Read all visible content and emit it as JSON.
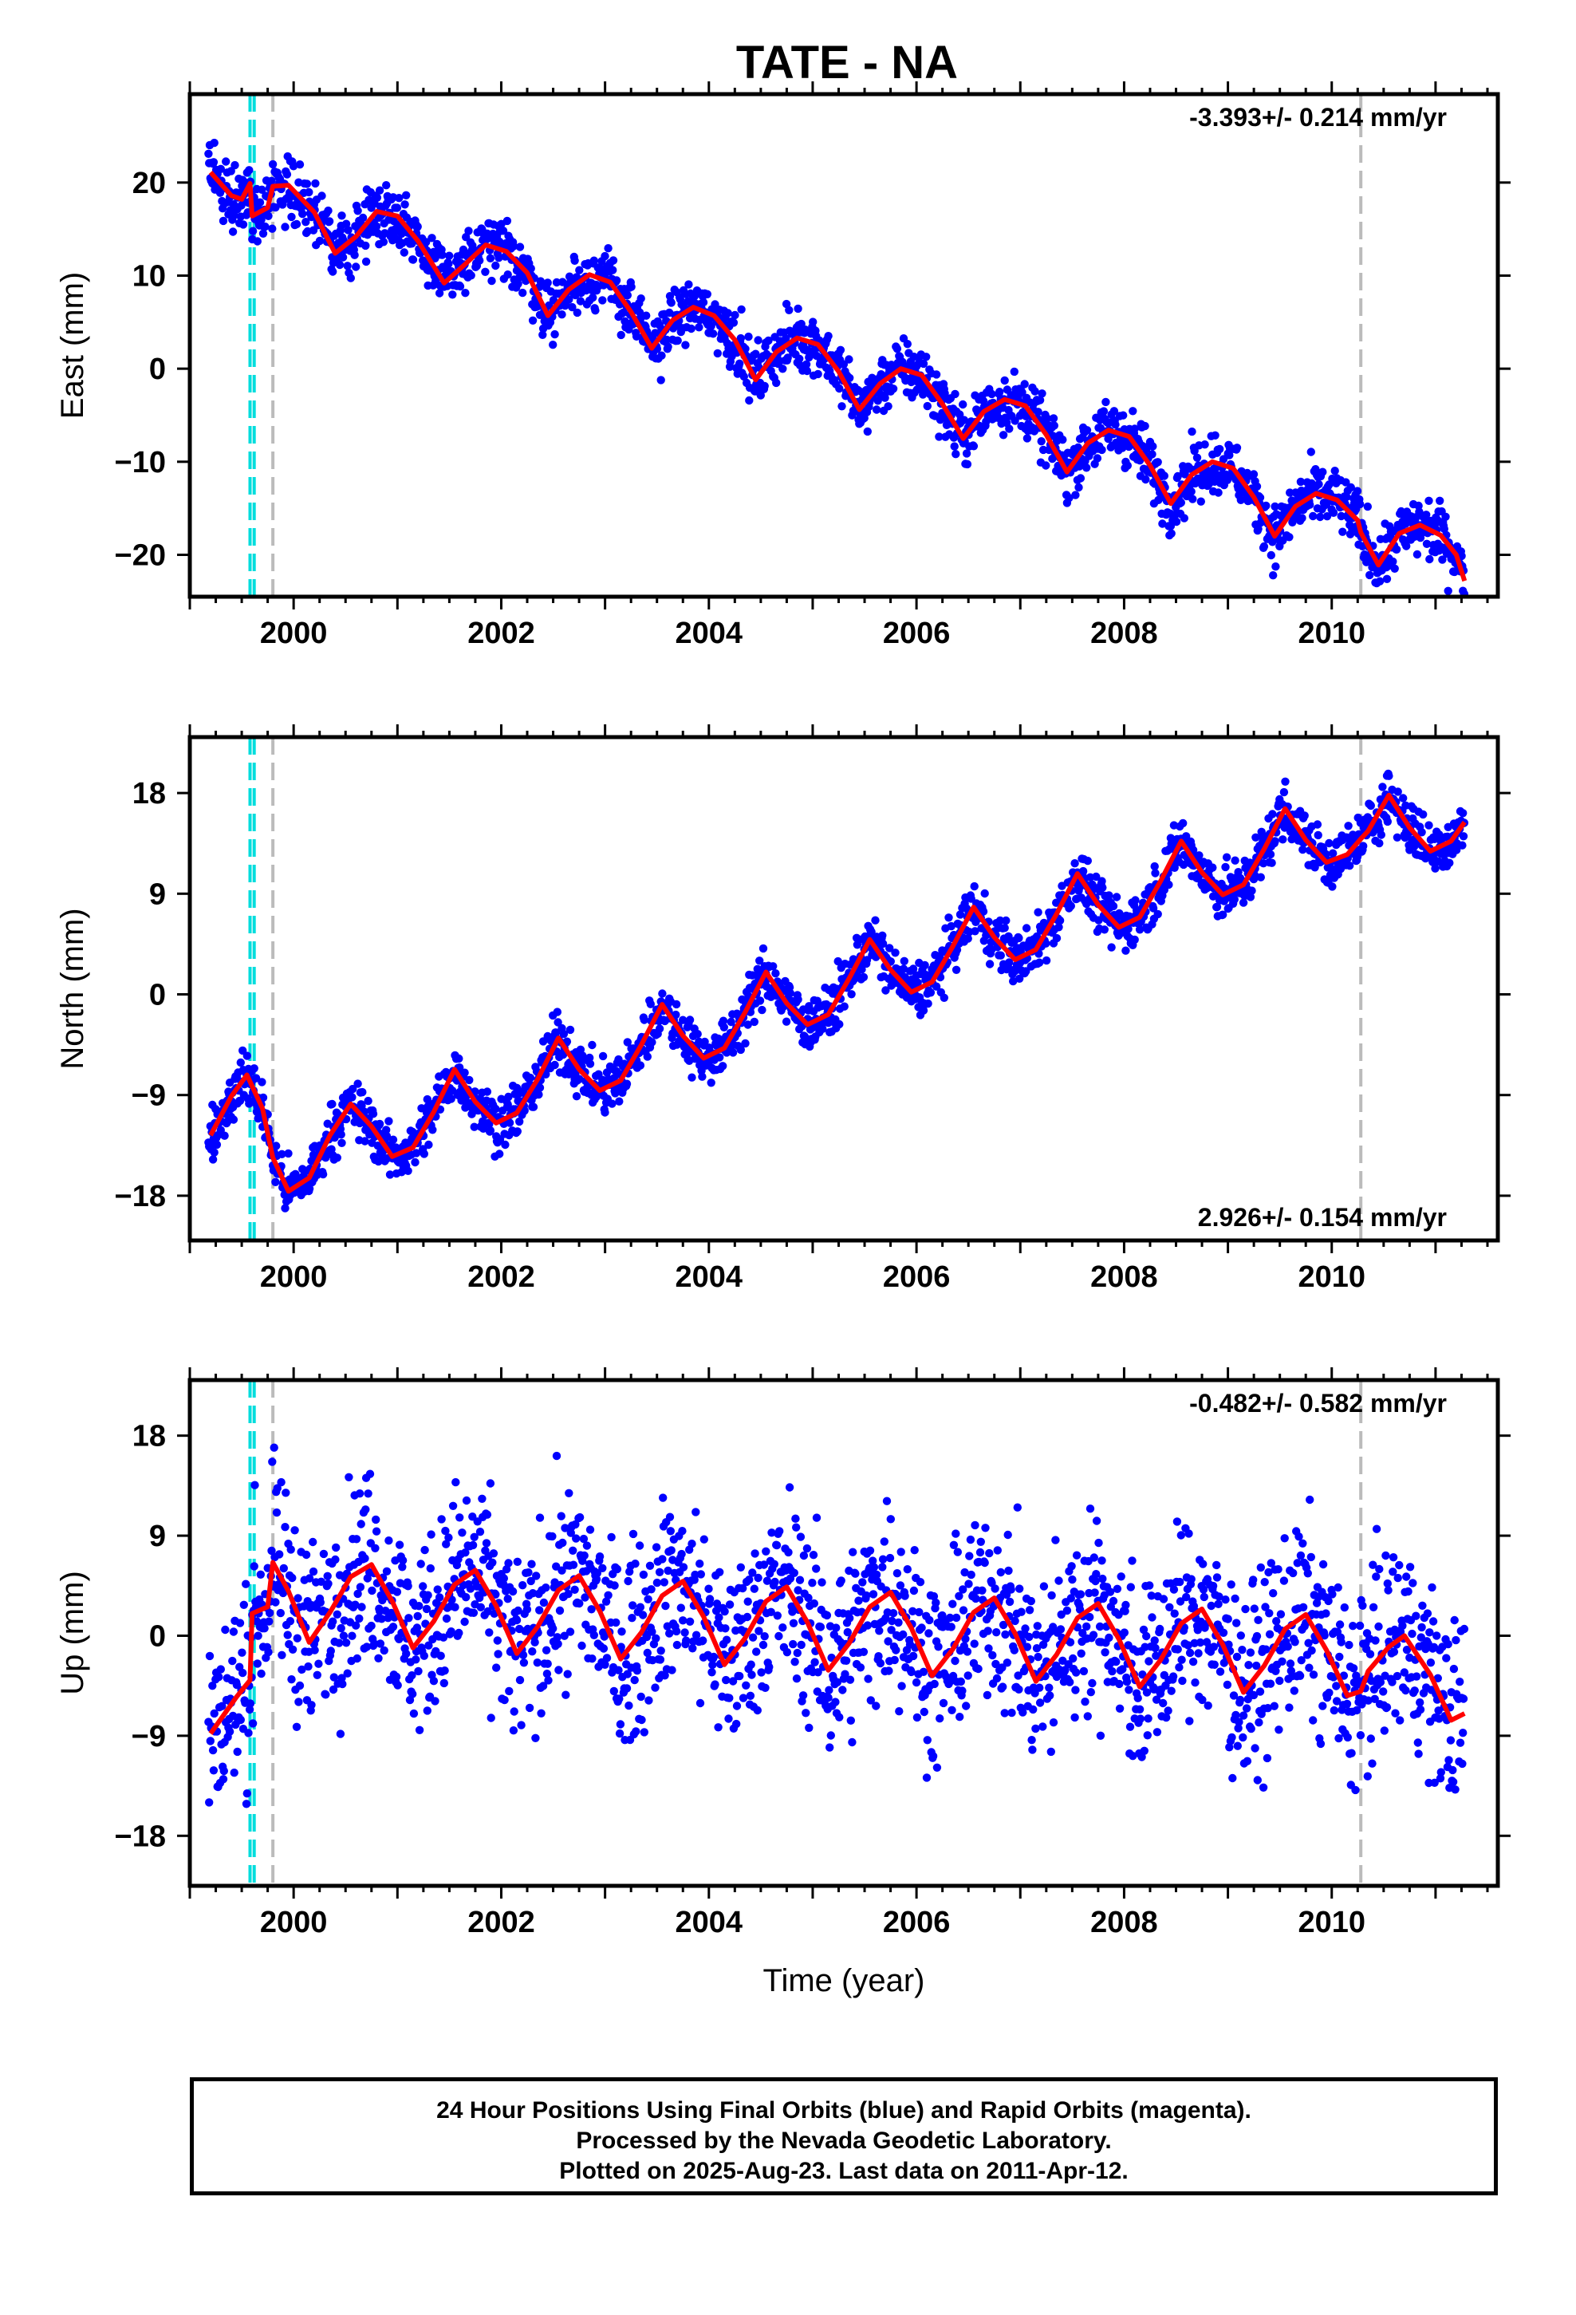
{
  "chart_data": {
    "type": "scatter",
    "title": "TATE - NA",
    "xlabel": "Time (year)",
    "xlim": [
      1999.0,
      2011.6
    ],
    "xticks": [
      "2000",
      "2002",
      "2004",
      "2006",
      "2008",
      "2010"
    ],
    "xtick_values": [
      2000,
      2002,
      2004,
      2006,
      2008,
      2010
    ],
    "legend": [
      "24 Hour Positions Using Final Orbits (blue) and Rapid Orbits (magenta).",
      "Processed by the Nevada Geodetic Laboratory.",
      "Plotted on 2025-Aug-23. Last data on 2011-Apr-12."
    ],
    "colors": {
      "points": "#0000ff",
      "model": "#ff0000",
      "equipment": "#00dddd",
      "event": "#bbbbbb"
    },
    "vertical_lines": {
      "cyan_dashed": [
        1999.58,
        1999.62
      ],
      "gray_dashed": [
        1999.8,
        2010.28
      ]
    },
    "panels": [
      {
        "ylabel": "East (mm)",
        "ylim": [
          -24.5,
          29.5
        ],
        "yticks": [
          "20",
          "10",
          "0",
          "−10",
          "−20"
        ],
        "ytick_values": [
          20,
          10,
          0,
          -10,
          -20
        ],
        "rate_label": "-3.393+/- 0.214 mm/yr",
        "rate_pos": "top-right",
        "rate": -3.393,
        "rate_sigma": 0.214,
        "model_series": [
          {
            "x": 1999.2,
            "y": 21.1
          },
          {
            "x": 1999.4,
            "y": 18.6
          },
          {
            "x": 1999.5,
            "y": 18.2
          },
          {
            "x": 1999.58,
            "y": 19.9
          },
          {
            "x": 1999.6,
            "y": 16.4
          },
          {
            "x": 1999.75,
            "y": 17.3
          },
          {
            "x": 1999.8,
            "y": 19.6
          },
          {
            "x": 1999.95,
            "y": 19.7
          },
          {
            "x": 2000.2,
            "y": 16.8
          },
          {
            "x": 2000.4,
            "y": 12.4
          },
          {
            "x": 2000.6,
            "y": 14.2
          },
          {
            "x": 2000.8,
            "y": 16.9
          },
          {
            "x": 2001.0,
            "y": 16.4
          },
          {
            "x": 2001.2,
            "y": 13.7
          },
          {
            "x": 2001.45,
            "y": 9.2
          },
          {
            "x": 2001.65,
            "y": 11.2
          },
          {
            "x": 2001.85,
            "y": 13.3
          },
          {
            "x": 2002.05,
            "y": 12.6
          },
          {
            "x": 2002.25,
            "y": 10.3
          },
          {
            "x": 2002.45,
            "y": 5.7
          },
          {
            "x": 2002.65,
            "y": 8.5
          },
          {
            "x": 2002.85,
            "y": 10.1
          },
          {
            "x": 2003.05,
            "y": 9.3
          },
          {
            "x": 2003.25,
            "y": 6.1
          },
          {
            "x": 2003.45,
            "y": 2.2
          },
          {
            "x": 2003.65,
            "y": 5.2
          },
          {
            "x": 2003.85,
            "y": 6.6
          },
          {
            "x": 2004.05,
            "y": 5.7
          },
          {
            "x": 2004.25,
            "y": 3.1
          },
          {
            "x": 2004.45,
            "y": -1.2
          },
          {
            "x": 2004.65,
            "y": 1.8
          },
          {
            "x": 2004.85,
            "y": 3.3
          },
          {
            "x": 2005.05,
            "y": 2.6
          },
          {
            "x": 2005.25,
            "y": -0.3
          },
          {
            "x": 2005.45,
            "y": -4.4
          },
          {
            "x": 2005.65,
            "y": -1.6
          },
          {
            "x": 2005.85,
            "y": 0.0
          },
          {
            "x": 2006.05,
            "y": -0.7
          },
          {
            "x": 2006.25,
            "y": -3.8
          },
          {
            "x": 2006.45,
            "y": -7.5
          },
          {
            "x": 2006.65,
            "y": -4.6
          },
          {
            "x": 2006.85,
            "y": -3.3
          },
          {
            "x": 2007.05,
            "y": -4.0
          },
          {
            "x": 2007.25,
            "y": -7.1
          },
          {
            "x": 2007.45,
            "y": -11.1
          },
          {
            "x": 2007.65,
            "y": -8.0
          },
          {
            "x": 2007.85,
            "y": -6.6
          },
          {
            "x": 2008.05,
            "y": -7.3
          },
          {
            "x": 2008.25,
            "y": -10.4
          },
          {
            "x": 2008.45,
            "y": -14.5
          },
          {
            "x": 2008.65,
            "y": -11.4
          },
          {
            "x": 2008.85,
            "y": -10.0
          },
          {
            "x": 2009.05,
            "y": -10.7
          },
          {
            "x": 2009.25,
            "y": -13.8
          },
          {
            "x": 2009.45,
            "y": -18.0
          },
          {
            "x": 2009.65,
            "y": -14.8
          },
          {
            "x": 2009.85,
            "y": -13.4
          },
          {
            "x": 2010.05,
            "y": -14.1
          },
          {
            "x": 2010.25,
            "y": -16.3
          },
          {
            "x": 2010.28,
            "y": -17.6
          },
          {
            "x": 2010.45,
            "y": -21.1
          },
          {
            "x": 2010.65,
            "y": -17.7
          },
          {
            "x": 2010.85,
            "y": -16.8
          },
          {
            "x": 2011.05,
            "y": -17.9
          },
          {
            "x": 2011.2,
            "y": -20.0
          },
          {
            "x": 2011.28,
            "y": -22.8
          }
        ]
      },
      {
        "ylabel": "North (mm)",
        "ylim": [
          -22.0,
          23.0
        ],
        "yticks": [
          "18",
          "9",
          "0",
          "−9",
          "−18"
        ],
        "ytick_values": [
          18,
          9,
          0,
          -9,
          -18
        ],
        "rate_label": "2.926+/- 0.154 mm/yr",
        "rate_pos": "bottom-right",
        "rate": 2.926,
        "rate_sigma": 0.154,
        "model_series": [
          {
            "x": 1999.2,
            "y": -12.6
          },
          {
            "x": 1999.4,
            "y": -9.1
          },
          {
            "x": 1999.55,
            "y": -7.2
          },
          {
            "x": 1999.7,
            "y": -10.2
          },
          {
            "x": 1999.8,
            "y": -14.6
          },
          {
            "x": 1999.95,
            "y": -17.6
          },
          {
            "x": 2000.15,
            "y": -16.4
          },
          {
            "x": 2000.35,
            "y": -12.6
          },
          {
            "x": 2000.55,
            "y": -9.8
          },
          {
            "x": 2000.75,
            "y": -11.8
          },
          {
            "x": 2000.95,
            "y": -14.5
          },
          {
            "x": 2001.15,
            "y": -13.7
          },
          {
            "x": 2001.35,
            "y": -10.5
          },
          {
            "x": 2001.55,
            "y": -6.7
          },
          {
            "x": 2001.75,
            "y": -9.6
          },
          {
            "x": 2001.95,
            "y": -11.5
          },
          {
            "x": 2002.15,
            "y": -10.6
          },
          {
            "x": 2002.35,
            "y": -7.6
          },
          {
            "x": 2002.55,
            "y": -3.9
          },
          {
            "x": 2002.75,
            "y": -6.7
          },
          {
            "x": 2002.95,
            "y": -8.6
          },
          {
            "x": 2003.15,
            "y": -7.7
          },
          {
            "x": 2003.35,
            "y": -4.5
          },
          {
            "x": 2003.55,
            "y": -0.9
          },
          {
            "x": 2003.75,
            "y": -3.7
          },
          {
            "x": 2003.95,
            "y": -5.7
          },
          {
            "x": 2004.15,
            "y": -4.8
          },
          {
            "x": 2004.35,
            "y": -1.6
          },
          {
            "x": 2004.55,
            "y": 2.0
          },
          {
            "x": 2004.75,
            "y": -0.8
          },
          {
            "x": 2004.95,
            "y": -2.7
          },
          {
            "x": 2005.15,
            "y": -1.8
          },
          {
            "x": 2005.35,
            "y": 1.4
          },
          {
            "x": 2005.55,
            "y": 4.9
          },
          {
            "x": 2005.75,
            "y": 2.2
          },
          {
            "x": 2005.95,
            "y": 0.2
          },
          {
            "x": 2006.15,
            "y": 1.1
          },
          {
            "x": 2006.35,
            "y": 4.3
          },
          {
            "x": 2006.55,
            "y": 7.8
          },
          {
            "x": 2006.75,
            "y": 5.1
          },
          {
            "x": 2006.95,
            "y": 3.1
          },
          {
            "x": 2007.15,
            "y": 4.0
          },
          {
            "x": 2007.35,
            "y": 7.2
          },
          {
            "x": 2007.55,
            "y": 10.8
          },
          {
            "x": 2007.75,
            "y": 8.0
          },
          {
            "x": 2007.95,
            "y": 6.0
          },
          {
            "x": 2008.15,
            "y": 6.9
          },
          {
            "x": 2008.35,
            "y": 10.1
          },
          {
            "x": 2008.55,
            "y": 13.7
          },
          {
            "x": 2008.75,
            "y": 10.9
          },
          {
            "x": 2008.95,
            "y": 8.9
          },
          {
            "x": 2009.15,
            "y": 9.8
          },
          {
            "x": 2009.35,
            "y": 13.0
          },
          {
            "x": 2009.55,
            "y": 16.6
          },
          {
            "x": 2009.75,
            "y": 13.8
          },
          {
            "x": 2009.95,
            "y": 11.8
          },
          {
            "x": 2010.15,
            "y": 12.5
          },
          {
            "x": 2010.28,
            "y": 13.9
          },
          {
            "x": 2010.35,
            "y": 14.6
          },
          {
            "x": 2010.55,
            "y": 17.8
          },
          {
            "x": 2010.75,
            "y": 14.9
          },
          {
            "x": 2010.95,
            "y": 12.8
          },
          {
            "x": 2011.15,
            "y": 13.7
          },
          {
            "x": 2011.28,
            "y": 15.4
          }
        ]
      },
      {
        "ylabel": "Up (mm)",
        "ylim": [
          -22.5,
          23.0
        ],
        "yticks": [
          "18",
          "9",
          "0",
          "−9",
          "−18"
        ],
        "ytick_values": [
          18,
          9,
          0,
          -9,
          -18
        ],
        "rate_label": "-0.482+/- 0.582 mm/yr",
        "rate_pos": "top-right",
        "rate": -0.482,
        "rate_sigma": 0.582,
        "model_series": [
          {
            "x": 1999.2,
            "y": -8.8
          },
          {
            "x": 1999.45,
            "y": -5.5
          },
          {
            "x": 1999.58,
            "y": -4.0
          },
          {
            "x": 1999.6,
            "y": 2.0
          },
          {
            "x": 1999.75,
            "y": 2.6
          },
          {
            "x": 1999.8,
            "y": 6.6
          },
          {
            "x": 1999.95,
            "y": 4.0
          },
          {
            "x": 2000.15,
            "y": -0.6
          },
          {
            "x": 2000.35,
            "y": 2.1
          },
          {
            "x": 2000.55,
            "y": 5.3
          },
          {
            "x": 2000.75,
            "y": 6.4
          },
          {
            "x": 2000.95,
            "y": 3.1
          },
          {
            "x": 2001.15,
            "y": -1.1
          },
          {
            "x": 2001.35,
            "y": 1.3
          },
          {
            "x": 2001.55,
            "y": 4.6
          },
          {
            "x": 2001.75,
            "y": 5.9
          },
          {
            "x": 2001.95,
            "y": 2.7
          },
          {
            "x": 2002.15,
            "y": -1.6
          },
          {
            "x": 2002.35,
            "y": 0.8
          },
          {
            "x": 2002.55,
            "y": 4.1
          },
          {
            "x": 2002.75,
            "y": 5.4
          },
          {
            "x": 2002.95,
            "y": 2.2
          },
          {
            "x": 2003.15,
            "y": -2.1
          },
          {
            "x": 2003.35,
            "y": 0.3
          },
          {
            "x": 2003.55,
            "y": 3.6
          },
          {
            "x": 2003.75,
            "y": 4.9
          },
          {
            "x": 2003.95,
            "y": 1.7
          },
          {
            "x": 2004.15,
            "y": -2.6
          },
          {
            "x": 2004.35,
            "y": -0.2
          },
          {
            "x": 2004.55,
            "y": 3.1
          },
          {
            "x": 2004.75,
            "y": 4.4
          },
          {
            "x": 2004.95,
            "y": 1.2
          },
          {
            "x": 2005.15,
            "y": -3.1
          },
          {
            "x": 2005.35,
            "y": -0.7
          },
          {
            "x": 2005.55,
            "y": 2.6
          },
          {
            "x": 2005.75,
            "y": 3.9
          },
          {
            "x": 2005.95,
            "y": 0.7
          },
          {
            "x": 2006.15,
            "y": -3.6
          },
          {
            "x": 2006.35,
            "y": -1.2
          },
          {
            "x": 2006.55,
            "y": 2.1
          },
          {
            "x": 2006.75,
            "y": 3.4
          },
          {
            "x": 2006.95,
            "y": 0.2
          },
          {
            "x": 2007.15,
            "y": -4.1
          },
          {
            "x": 2007.35,
            "y": -1.7
          },
          {
            "x": 2007.55,
            "y": 1.6
          },
          {
            "x": 2007.75,
            "y": 2.9
          },
          {
            "x": 2007.95,
            "y": -0.3
          },
          {
            "x": 2008.15,
            "y": -4.6
          },
          {
            "x": 2008.35,
            "y": -2.2
          },
          {
            "x": 2008.55,
            "y": 1.1
          },
          {
            "x": 2008.75,
            "y": 2.4
          },
          {
            "x": 2008.95,
            "y": -0.8
          },
          {
            "x": 2009.15,
            "y": -5.1
          },
          {
            "x": 2009.35,
            "y": -2.7
          },
          {
            "x": 2009.55,
            "y": 0.6
          },
          {
            "x": 2009.75,
            "y": 1.9
          },
          {
            "x": 2009.95,
            "y": -1.3
          },
          {
            "x": 2010.15,
            "y": -5.4
          },
          {
            "x": 2010.28,
            "y": -5.0
          },
          {
            "x": 2010.35,
            "y": -3.2
          },
          {
            "x": 2010.55,
            "y": -1.0
          },
          {
            "x": 2010.7,
            "y": 0.0
          },
          {
            "x": 2010.95,
            "y": -3.5
          },
          {
            "x": 2011.15,
            "y": -7.6
          },
          {
            "x": 2011.28,
            "y": -7.0
          }
        ]
      }
    ]
  }
}
